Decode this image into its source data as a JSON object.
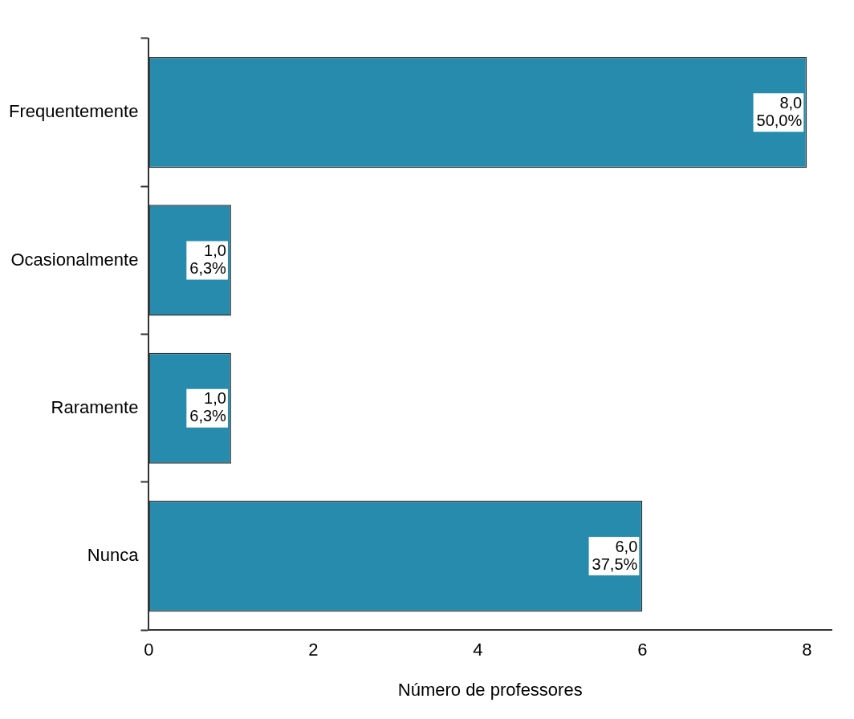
{
  "chart_data": {
    "type": "bar",
    "orientation": "horizontal",
    "xlabel": "Número de professores",
    "categories": [
      "Frequentemente",
      "Ocasionalmente",
      "Raramente",
      "Nunca"
    ],
    "values": [
      8,
      1,
      1,
      6
    ],
    "value_labels": [
      "8,0\n50,0%",
      "1,0\n6,3%",
      "1,0\n6,3%",
      "6,0\n37,5%"
    ],
    "color": "#268bac",
    "xlim": [
      0,
      8.3
    ],
    "xticks": [
      0,
      2,
      4,
      6,
      8
    ],
    "grid": false,
    "legend": false
  }
}
